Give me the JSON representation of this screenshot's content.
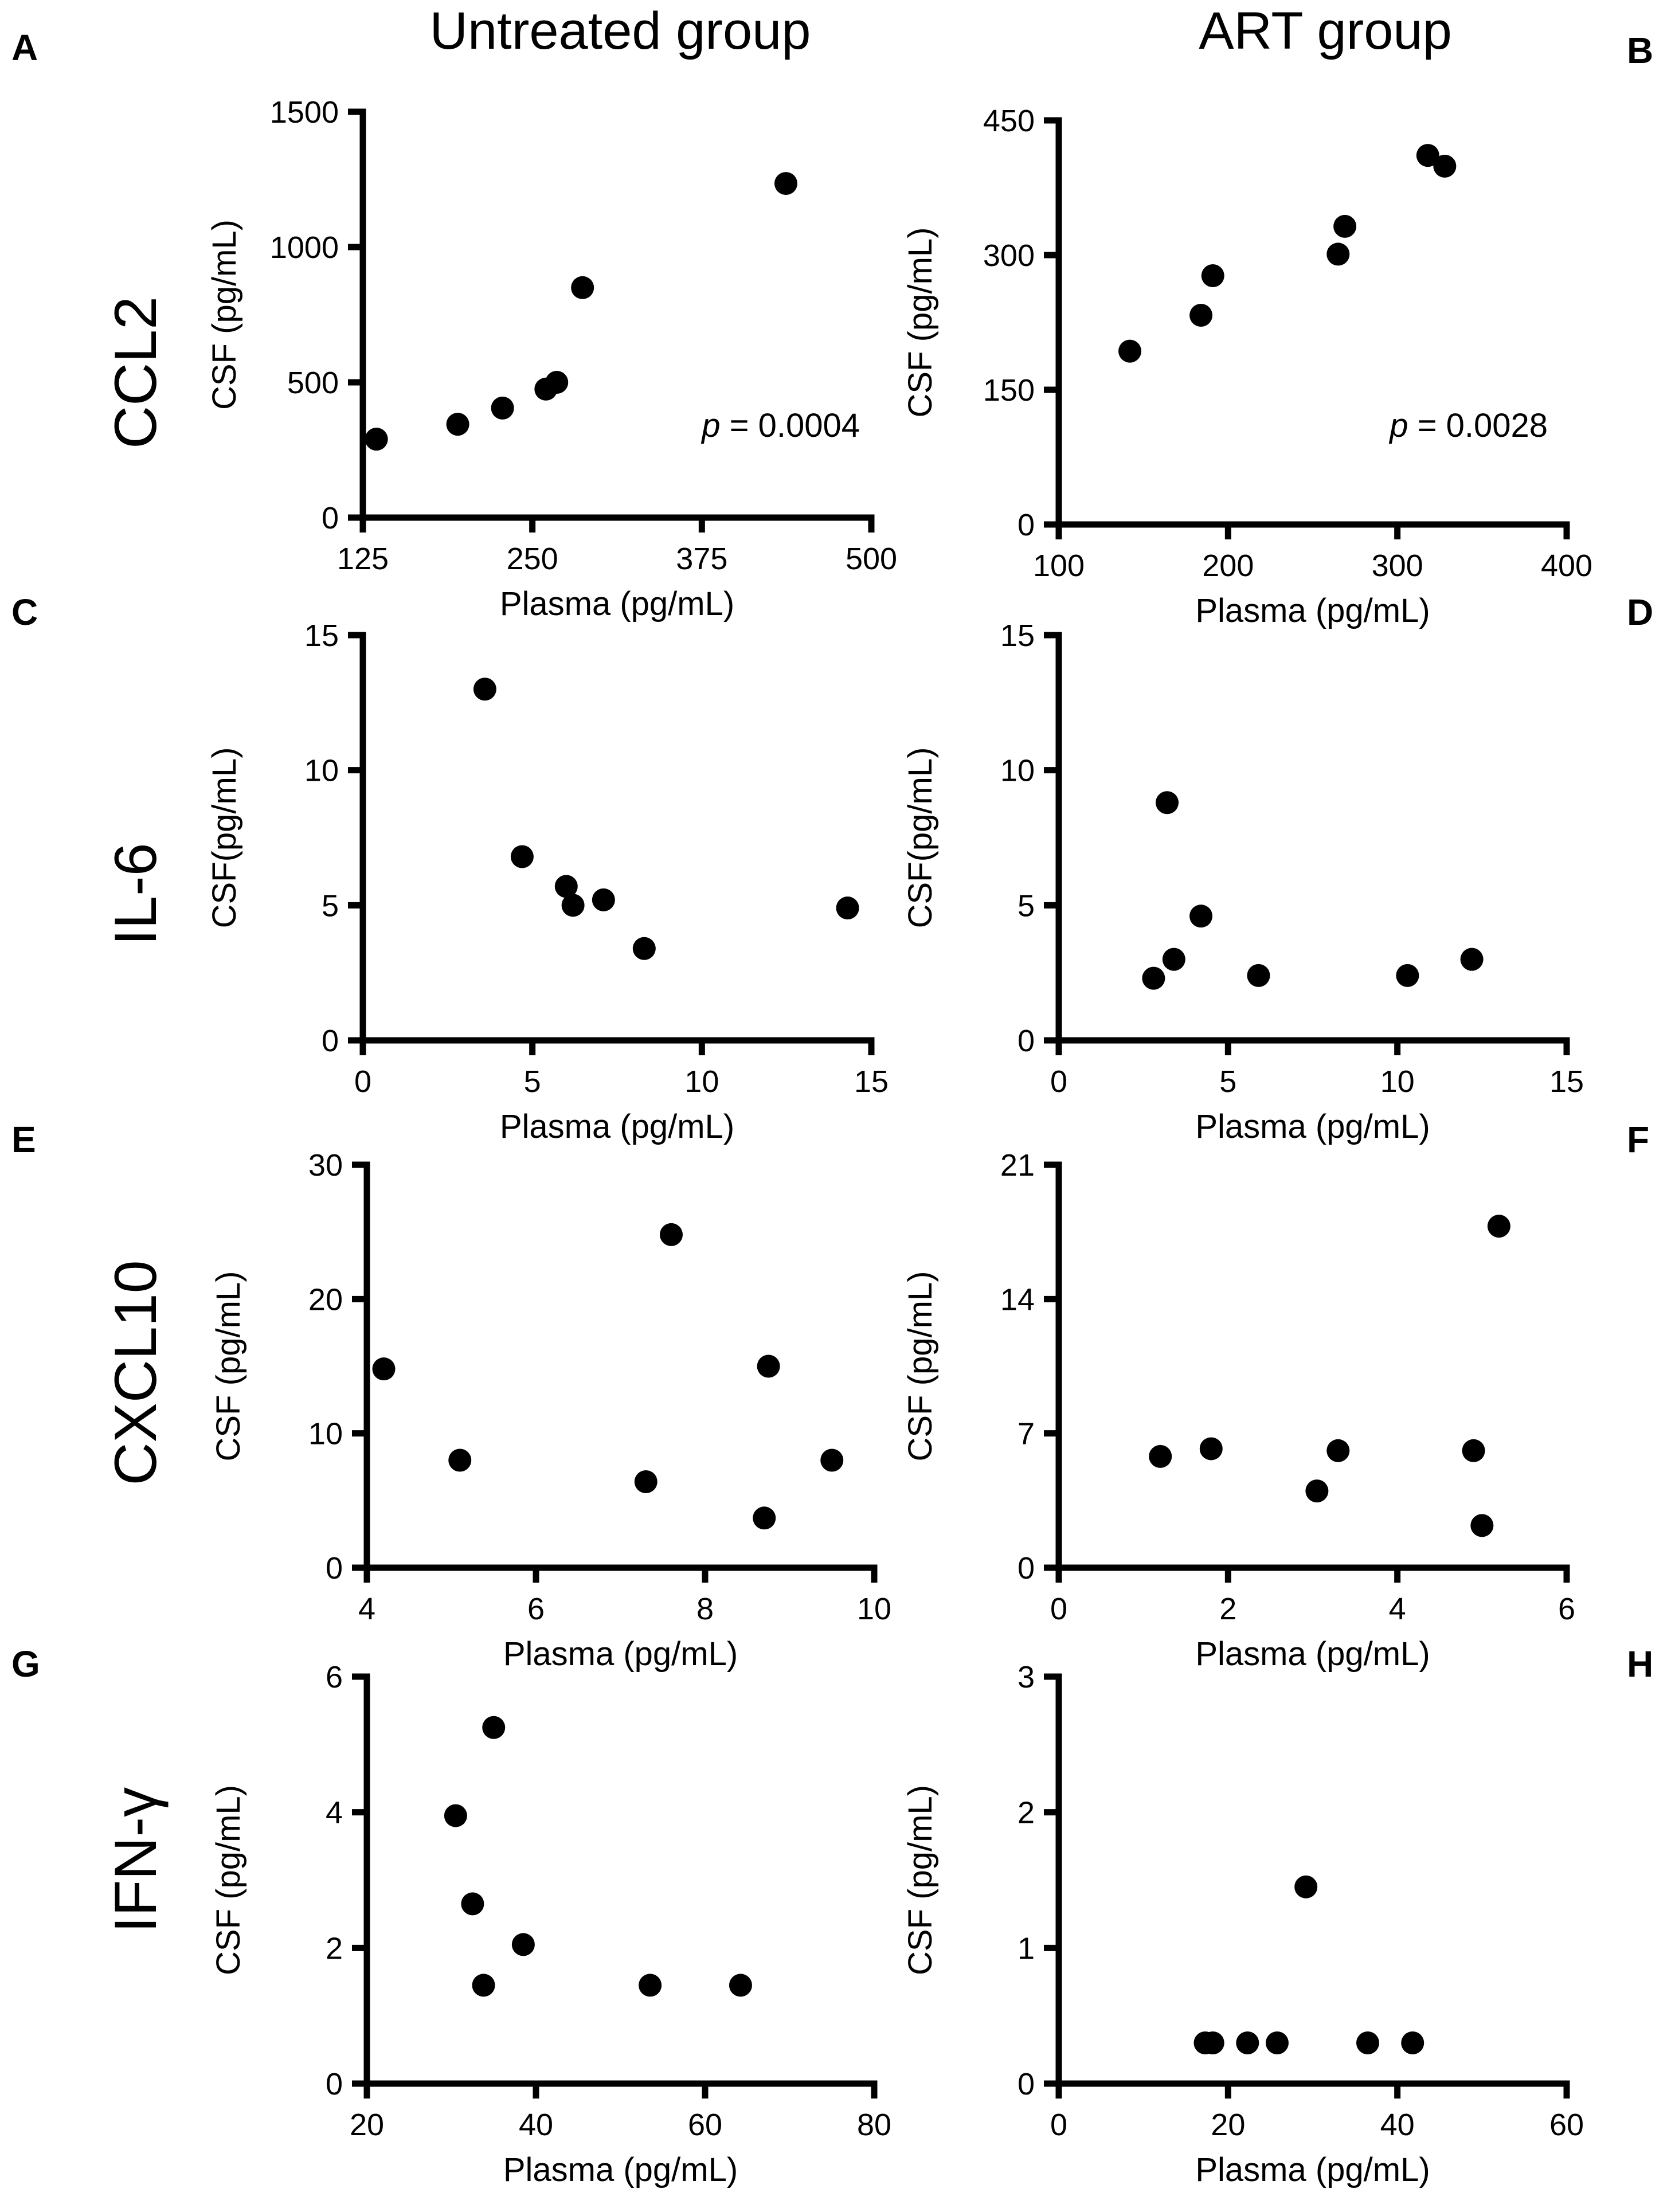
{
  "column_titles": [
    "Untreated group",
    "ART group"
  ],
  "row_labels": [
    "CCL2",
    "IL-6",
    "CXCL10",
    "IFN-γ"
  ],
  "colors": {
    "points": "#000000",
    "axes": "#000000",
    "background": "#ffffff"
  },
  "chart_data": [
    {
      "panel": "A",
      "type": "scatter",
      "group": "Untreated group",
      "analyte": "CCL2",
      "xlabel": "Plasma (pg/mL)",
      "ylabel": "CSF (pg/mL)",
      "xlim": [
        125,
        500
      ],
      "ylim": [
        0,
        1500
      ],
      "xticks": [
        125,
        250,
        375,
        500
      ],
      "yticks": [
        0,
        500,
        1000,
        1500
      ],
      "pvalue": {
        "label": "p",
        "text": " = 0.0004"
      },
      "x": [
        135,
        195,
        228,
        260,
        268,
        287,
        437
      ],
      "y": [
        290,
        345,
        405,
        475,
        500,
        850,
        1235
      ]
    },
    {
      "panel": "B",
      "type": "scatter",
      "group": "ART group",
      "analyte": "CCL2",
      "xlabel": "Plasma (pg/mL)",
      "ylabel": "CSF (pg/mL)",
      "xlim": [
        100,
        400
      ],
      "ylim": [
        0,
        450
      ],
      "xticks": [
        100,
        200,
        300,
        400
      ],
      "yticks": [
        0,
        150,
        300,
        450
      ],
      "pvalue": {
        "label": "p",
        "text": " = 0.0028"
      },
      "x": [
        142,
        184,
        191,
        265,
        269,
        318,
        328
      ],
      "y": [
        193,
        233,
        277,
        301,
        332,
        411,
        399
      ]
    },
    {
      "panel": "C",
      "type": "scatter",
      "group": "Untreated group",
      "analyte": "IL-6",
      "xlabel": "Plasma (pg/mL)",
      "ylabel": "CSF(pg/mL)",
      "xlim": [
        0,
        15
      ],
      "ylim": [
        0,
        15
      ],
      "xticks": [
        0,
        5,
        10,
        15
      ],
      "yticks": [
        0,
        5,
        10,
        15
      ],
      "x": [
        3.6,
        4.7,
        6.0,
        6.2,
        7.1,
        8.3,
        14.3
      ],
      "y": [
        13.0,
        6.8,
        5.7,
        5.0,
        5.2,
        3.4,
        4.9
      ]
    },
    {
      "panel": "D",
      "type": "scatter",
      "group": "ART group",
      "analyte": "IL-6",
      "xlabel": "Plasma (pg/mL)",
      "ylabel": "CSF(pg/mL)",
      "xlim": [
        0,
        15
      ],
      "ylim": [
        0,
        15
      ],
      "xticks": [
        0,
        5,
        10,
        15
      ],
      "yticks": [
        0,
        5,
        10,
        15
      ],
      "x": [
        2.8,
        3.2,
        3.4,
        4.2,
        5.9,
        10.3,
        12.2
      ],
      "y": [
        2.3,
        8.8,
        3.0,
        4.6,
        2.4,
        2.4,
        3.0
      ]
    },
    {
      "panel": "E",
      "type": "scatter",
      "group": "Untreated group",
      "analyte": "CXCL10",
      "xlabel": "Plasma (pg/mL)",
      "ylabel": "CSF (pg/mL)",
      "xlim": [
        4,
        10
      ],
      "ylim": [
        0,
        30
      ],
      "xticks": [
        4,
        6,
        8,
        10
      ],
      "yticks": [
        0,
        10,
        20,
        30
      ],
      "x": [
        4.2,
        5.1,
        7.3,
        7.6,
        8.7,
        8.75,
        9.5
      ],
      "y": [
        14.8,
        8.0,
        6.4,
        24.8,
        3.7,
        15.0,
        8.0
      ]
    },
    {
      "panel": "F",
      "type": "scatter",
      "group": "ART group",
      "analyte": "CXCL10",
      "xlabel": "Plasma (pg/mL)",
      "ylabel": "CSF (pg/mL)",
      "xlim": [
        0,
        6
      ],
      "ylim": [
        0,
        21
      ],
      "xticks": [
        0,
        2,
        4,
        6
      ],
      "yticks": [
        0,
        7,
        14,
        21
      ],
      "x": [
        1.2,
        1.8,
        3.05,
        3.3,
        4.9,
        5.0,
        5.2
      ],
      "y": [
        5.8,
        6.2,
        4.0,
        6.1,
        6.1,
        2.2,
        17.8
      ]
    },
    {
      "panel": "G",
      "type": "scatter",
      "group": "Untreated group",
      "analyte": "IFN-γ",
      "xlabel": "Plasma (pg/mL)",
      "ylabel": "CSF (pg/mL)",
      "xlim": [
        20,
        80
      ],
      "ylim": [
        0,
        6
      ],
      "xticks": [
        20,
        40,
        60,
        80
      ],
      "yticks": [
        0,
        2,
        4,
        6
      ],
      "x": [
        30.5,
        32.5,
        33.8,
        35.0,
        38.5,
        53.5,
        64.2
      ],
      "y": [
        3.95,
        2.65,
        1.45,
        5.25,
        2.05,
        1.45,
        1.45
      ]
    },
    {
      "panel": "H",
      "type": "scatter",
      "group": "ART group",
      "analyte": "IFN-γ",
      "xlabel": "Plasma (pg/mL)",
      "ylabel": "CSF (pg/mL)",
      "xlim": [
        0,
        60
      ],
      "ylim": [
        0,
        3
      ],
      "xticks": [
        0,
        20,
        40,
        60
      ],
      "yticks": [
        0,
        1,
        2,
        3
      ],
      "x": [
        17.3,
        18.2,
        22.3,
        25.8,
        29.2,
        36.5,
        41.8
      ],
      "y": [
        0.3,
        0.3,
        0.3,
        0.3,
        1.45,
        0.3,
        0.3
      ]
    }
  ]
}
